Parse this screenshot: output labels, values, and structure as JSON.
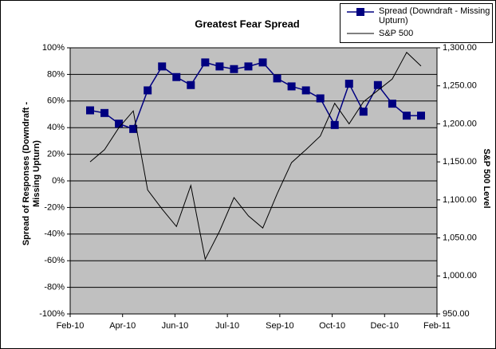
{
  "chart_data": {
    "type": "line",
    "title": "Greatest Fear Spread",
    "ylabel": "Spread of Responses (Downdraft - Missing Upturn)",
    "y2label": "S&P 500 Level",
    "x_labels": [
      "Feb-10",
      "Apr-10",
      "Jun-10",
      "Jul-10",
      "Sep-10",
      "Oct-10",
      "Dec-10",
      "Feb-11"
    ],
    "ylim": [
      -100,
      100
    ],
    "yticks": [
      {
        "value": -100,
        "label": "-100%"
      },
      {
        "value": -80,
        "label": "-80%"
      },
      {
        "value": -60,
        "label": "-60%"
      },
      {
        "value": -40,
        "label": "-40%"
      },
      {
        "value": -20,
        "label": "-20%"
      },
      {
        "value": 0,
        "label": "0%"
      },
      {
        "value": 20,
        "label": "20%"
      },
      {
        "value": 40,
        "label": "40%"
      },
      {
        "value": 60,
        "label": "60%"
      },
      {
        "value": 80,
        "label": "80%"
      },
      {
        "value": 100,
        "label": "100%"
      }
    ],
    "y2lim": [
      950,
      1300
    ],
    "y2ticks": [
      {
        "value": 950,
        "label": "950.00"
      },
      {
        "value": 1000,
        "label": "1,000.00"
      },
      {
        "value": 1050,
        "label": "1,050.00"
      },
      {
        "value": 1100,
        "label": "1,100.00"
      },
      {
        "value": 1150,
        "label": "1,150.00"
      },
      {
        "value": 1200,
        "label": "1,200.00"
      },
      {
        "value": 1250,
        "label": "1,250.00"
      },
      {
        "value": 1300,
        "label": "1,300.00"
      }
    ],
    "grid": true,
    "series": [
      {
        "name": "Spread (Downdraft - Missing Upturn)",
        "color": "#000080",
        "marker": "square",
        "values": [
          53,
          51,
          43,
          39,
          68,
          86,
          78,
          72,
          89,
          86,
          84,
          86,
          89,
          77,
          71,
          68,
          62,
          42,
          73,
          52,
          72,
          58,
          49,
          49
        ]
      },
      {
        "name": "S&P 500",
        "color": "#000000",
        "axis": "y2",
        "values": [
          1150,
          1166,
          1195,
          1217,
          1113,
          1088,
          1065,
          1119,
          1022,
          1059,
          1103,
          1079,
          1063,
          1108,
          1149,
          1166,
          1184,
          1227,
          1200,
          1229,
          1244,
          1259,
          1294,
          1276
        ]
      }
    ]
  }
}
